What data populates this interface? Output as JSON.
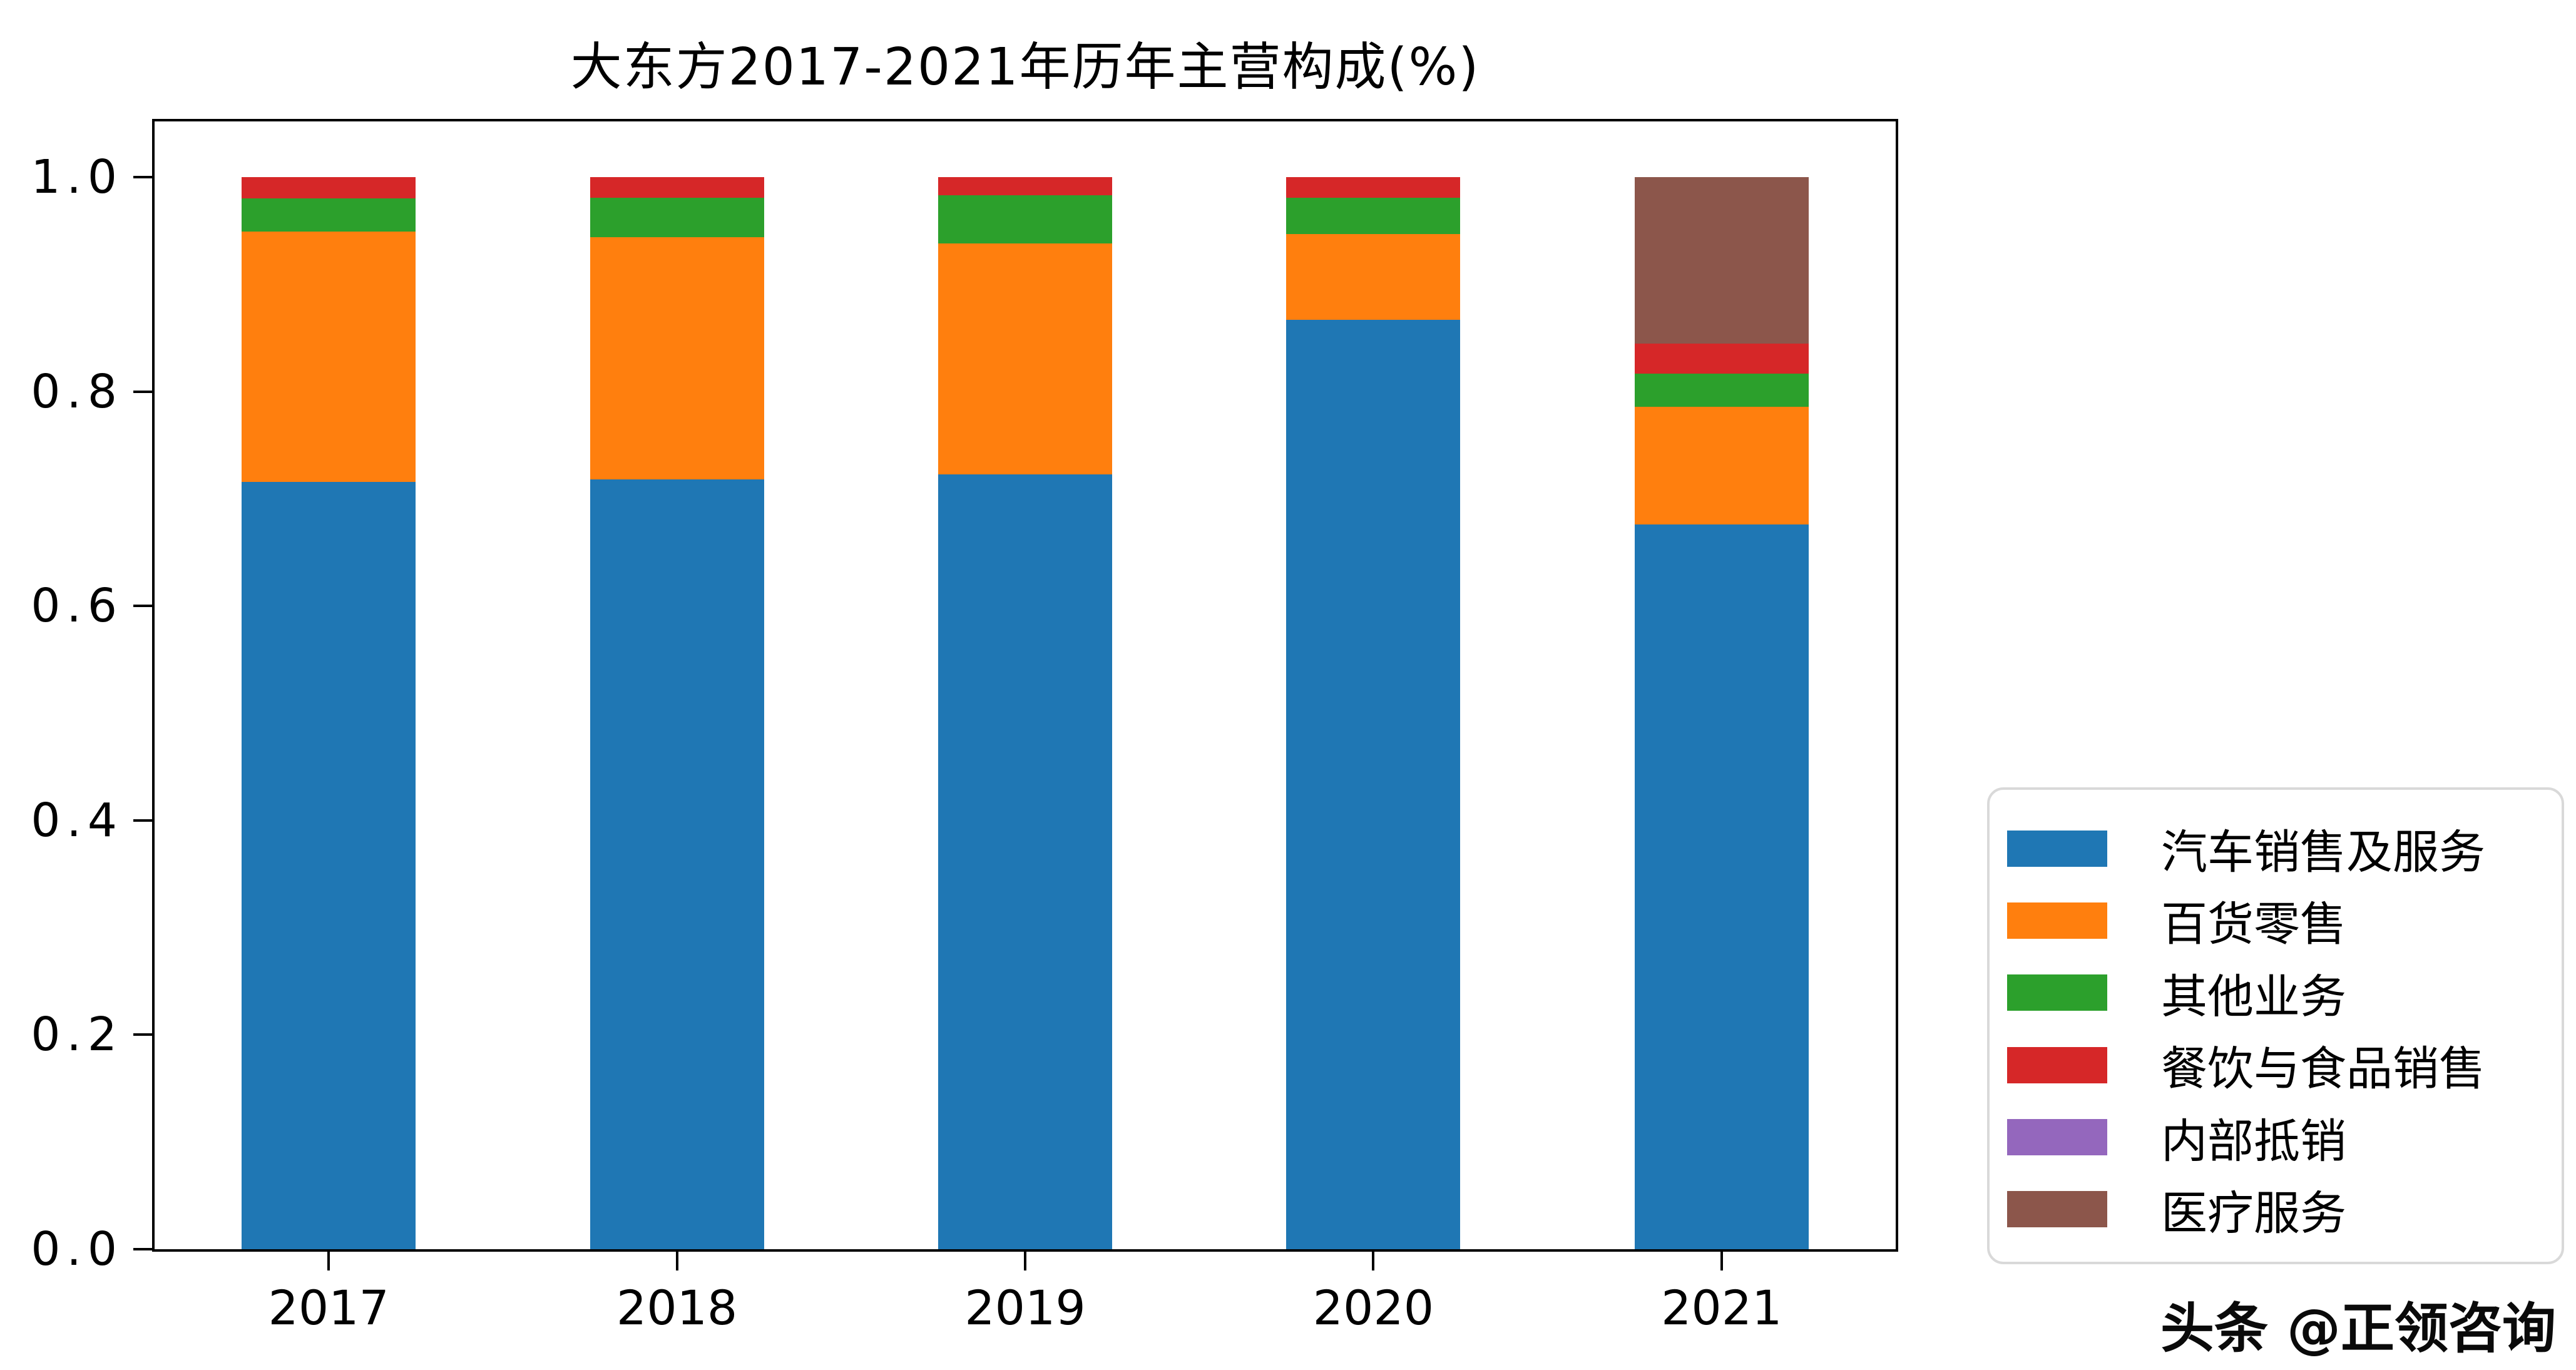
{
  "title": "大东方2017-2021年历年主营构成(%)",
  "watermark": "头条 @正领咨询",
  "chart_data": {
    "type": "bar",
    "stacked": true,
    "title": "大东方2017-2021年历年主营构成(%)",
    "xlabel": "",
    "ylabel": "",
    "categories": [
      "2017",
      "2018",
      "2019",
      "2020",
      "2021"
    ],
    "series": [
      {
        "name": "汽车销售及服务",
        "color": "#1f77b4",
        "values": [
          0.716,
          0.718,
          0.723,
          0.867,
          0.676
        ]
      },
      {
        "name": "百货零售",
        "color": "#ff7f0e",
        "values": [
          0.233,
          0.226,
          0.215,
          0.08,
          0.11
        ]
      },
      {
        "name": "其他业务",
        "color": "#2ca02c",
        "values": [
          0.031,
          0.037,
          0.045,
          0.034,
          0.031
        ]
      },
      {
        "name": "餐饮与食品销售",
        "color": "#d62728",
        "values": [
          0.02,
          0.019,
          0.017,
          0.019,
          0.028
        ]
      },
      {
        "name": "内部抵销",
        "color": "#9467bd",
        "values": [
          0,
          0,
          0,
          0,
          0
        ]
      },
      {
        "name": "医疗服务",
        "color": "#8c564b",
        "values": [
          0,
          0,
          0,
          0,
          0.155
        ]
      }
    ],
    "ylim": [
      0,
      1.052
    ],
    "y_ticks": [
      "0.0",
      "0.2",
      "0.4",
      "0.6",
      "0.8",
      "1.0"
    ],
    "y_tick_values": [
      0,
      0.2,
      0.4,
      0.6,
      0.8,
      1.0
    ],
    "bar_width_fraction": 0.5,
    "grid": false,
    "legend_position": "right-outside"
  }
}
